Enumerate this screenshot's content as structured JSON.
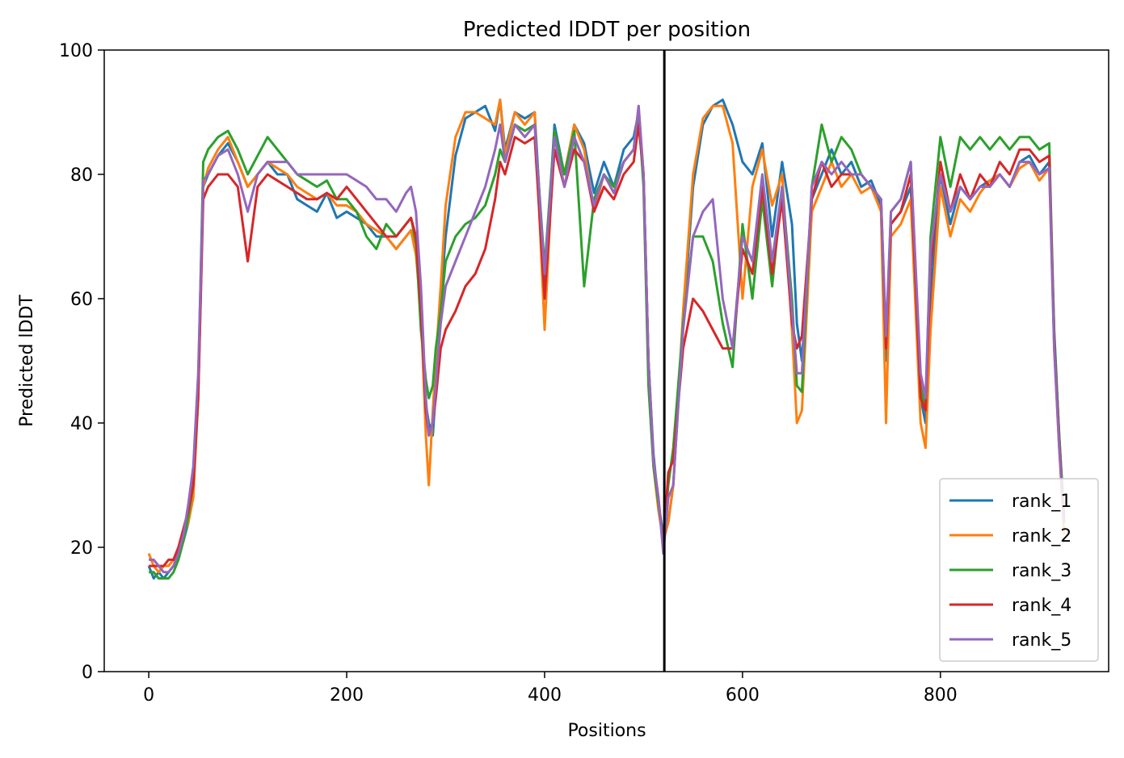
{
  "chart_data": {
    "type": "line",
    "title": "Predicted lDDT per position",
    "xlabel": "Positions",
    "ylabel": "Predicted lDDT",
    "xlim": [
      -45,
      970
    ],
    "ylim": [
      0,
      100
    ],
    "xticks": [
      0,
      200,
      400,
      600,
      800
    ],
    "yticks": [
      0,
      20,
      40,
      60,
      80,
      100
    ],
    "grid": false,
    "legend_position": "lower-right",
    "vertical_line": {
      "x": 521,
      "color": "#000000"
    },
    "x": [
      0,
      5,
      10,
      15,
      20,
      25,
      30,
      35,
      40,
      45,
      50,
      55,
      60,
      70,
      80,
      90,
      100,
      110,
      120,
      130,
      140,
      150,
      160,
      170,
      180,
      190,
      200,
      210,
      220,
      230,
      240,
      250,
      260,
      265,
      270,
      275,
      280,
      283,
      287,
      290,
      295,
      300,
      310,
      320,
      330,
      340,
      350,
      355,
      360,
      370,
      380,
      390,
      400,
      410,
      420,
      430,
      440,
      450,
      460,
      470,
      480,
      490,
      495,
      500,
      505,
      510,
      515,
      520,
      525,
      530,
      540,
      550,
      560,
      570,
      580,
      590,
      600,
      610,
      620,
      630,
      640,
      650,
      655,
      660,
      670,
      680,
      690,
      700,
      710,
      720,
      730,
      740,
      745,
      750,
      760,
      770,
      780,
      785,
      790,
      800,
      810,
      820,
      830,
      840,
      850,
      860,
      870,
      880,
      890,
      900,
      910,
      915,
      920,
      925
    ],
    "series": [
      {
        "name": "rank_1",
        "color": "#1f77b4",
        "values": [
          17,
          15,
          16,
          15,
          16,
          17,
          19,
          21,
          24,
          29,
          45,
          78,
          80,
          83,
          85,
          82,
          78,
          80,
          82,
          80,
          80,
          76,
          75,
          74,
          77,
          73,
          74,
          73,
          72,
          70,
          70,
          68,
          70,
          71,
          68,
          60,
          43,
          40,
          38,
          45,
          60,
          70,
          83,
          89,
          90,
          91,
          87,
          92,
          84,
          90,
          89,
          90,
          62,
          88,
          80,
          88,
          85,
          77,
          82,
          78,
          84,
          86,
          90,
          80,
          50,
          35,
          27,
          22,
          24,
          30,
          56,
          78,
          88,
          91,
          92,
          88,
          82,
          80,
          85,
          70,
          82,
          72,
          56,
          50,
          76,
          80,
          84,
          80,
          82,
          78,
          79,
          75,
          50,
          72,
          74,
          78,
          44,
          40,
          60,
          80,
          72,
          78,
          76,
          78,
          79,
          80,
          78,
          82,
          83,
          80,
          82,
          55,
          38,
          24
        ]
      },
      {
        "name": "rank_2",
        "color": "#ff7f0e",
        "values": [
          19,
          17,
          16,
          17,
          17,
          18,
          20,
          22,
          24,
          28,
          44,
          78,
          81,
          84,
          86,
          82,
          78,
          80,
          82,
          81,
          80,
          78,
          77,
          76,
          77,
          75,
          75,
          74,
          72,
          71,
          70,
          68,
          70,
          71,
          67,
          58,
          38,
          30,
          42,
          50,
          62,
          75,
          86,
          90,
          90,
          89,
          88,
          92,
          83,
          90,
          88,
          90,
          55,
          87,
          80,
          88,
          84,
          74,
          80,
          77,
          82,
          84,
          91,
          80,
          50,
          33,
          26,
          21,
          24,
          30,
          58,
          80,
          89,
          91,
          91,
          85,
          60,
          78,
          84,
          75,
          80,
          55,
          40,
          42,
          74,
          78,
          82,
          78,
          80,
          77,
          78,
          74,
          40,
          70,
          72,
          76,
          40,
          36,
          55,
          78,
          70,
          76,
          74,
          77,
          79,
          80,
          78,
          81,
          82,
          79,
          81,
          52,
          36,
          22
        ]
      },
      {
        "name": "rank_3",
        "color": "#2ca02c",
        "values": [
          16,
          16,
          15,
          15,
          15,
          16,
          18,
          21,
          25,
          30,
          46,
          82,
          84,
          86,
          87,
          84,
          80,
          83,
          86,
          84,
          82,
          80,
          79,
          78,
          79,
          76,
          76,
          74,
          70,
          68,
          72,
          70,
          72,
          73,
          69,
          55,
          47,
          44,
          46,
          52,
          58,
          66,
          70,
          72,
          73,
          75,
          80,
          84,
          82,
          88,
          87,
          88,
          65,
          87,
          80,
          87,
          62,
          76,
          80,
          78,
          82,
          84,
          90,
          78,
          46,
          33,
          27,
          21,
          30,
          36,
          56,
          70,
          70,
          66,
          56,
          49,
          72,
          60,
          76,
          62,
          78,
          60,
          46,
          45,
          78,
          88,
          82,
          86,
          84,
          80,
          78,
          76,
          52,
          74,
          76,
          82,
          46,
          42,
          70,
          86,
          78,
          86,
          84,
          86,
          84,
          86,
          84,
          86,
          86,
          84,
          85,
          54,
          38,
          25
        ]
      },
      {
        "name": "rank_4",
        "color": "#d62728",
        "values": [
          17,
          17,
          17,
          17,
          18,
          18,
          20,
          23,
          26,
          30,
          44,
          76,
          78,
          80,
          80,
          78,
          66,
          78,
          80,
          79,
          78,
          77,
          76,
          76,
          77,
          76,
          78,
          76,
          74,
          72,
          70,
          70,
          72,
          73,
          70,
          58,
          42,
          38,
          40,
          44,
          52,
          55,
          58,
          62,
          64,
          68,
          76,
          82,
          80,
          86,
          85,
          86,
          60,
          84,
          78,
          84,
          82,
          74,
          78,
          76,
          80,
          82,
          88,
          80,
          50,
          34,
          28,
          20,
          32,
          34,
          52,
          60,
          58,
          55,
          52,
          52,
          68,
          64,
          78,
          64,
          76,
          56,
          52,
          54,
          76,
          82,
          78,
          80,
          80,
          80,
          78,
          76,
          52,
          72,
          74,
          80,
          44,
          42,
          65,
          82,
          74,
          80,
          76,
          80,
          78,
          82,
          80,
          84,
          84,
          82,
          83,
          53,
          37,
          24
        ]
      },
      {
        "name": "rank_5",
        "color": "#9467bd",
        "values": [
          18,
          18,
          17,
          16,
          16,
          17,
          19,
          22,
          27,
          33,
          48,
          79,
          80,
          83,
          84,
          80,
          74,
          80,
          82,
          82,
          82,
          80,
          80,
          80,
          80,
          80,
          80,
          79,
          78,
          76,
          76,
          74,
          77,
          78,
          74,
          62,
          44,
          38,
          40,
          46,
          56,
          62,
          66,
          70,
          74,
          78,
          84,
          88,
          82,
          88,
          86,
          88,
          64,
          86,
          78,
          86,
          82,
          75,
          80,
          77,
          82,
          84,
          91,
          80,
          50,
          34,
          28,
          19,
          28,
          30,
          55,
          70,
          74,
          76,
          60,
          52,
          70,
          66,
          80,
          66,
          78,
          58,
          48,
          48,
          78,
          82,
          80,
          82,
          80,
          80,
          78,
          76,
          54,
          74,
          76,
          82,
          48,
          44,
          68,
          80,
          74,
          78,
          76,
          78,
          78,
          80,
          78,
          82,
          82,
          80,
          81,
          52,
          36,
          24
        ]
      }
    ]
  }
}
